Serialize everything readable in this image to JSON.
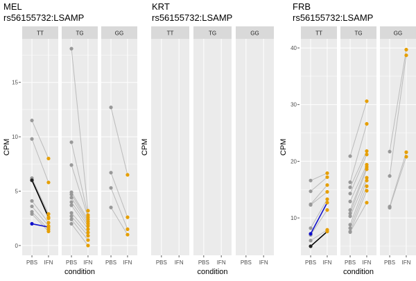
{
  "palette": {
    "pbs": "#999999",
    "ifn": "#E69F00",
    "line": "#BBBBBB",
    "mean_black": "#000000",
    "mean_blue": "#1010CC",
    "panel_bg": "#EBEBEB",
    "strip_bg": "#D9D9D9",
    "grid": "#FFFFFF"
  },
  "chart_data": [
    {
      "type": "line",
      "title": "MEL\nrs56155732:LSAMP",
      "xlabel": "condition",
      "ylabel": "CPM",
      "ylim": [
        -0.9,
        19.0
      ],
      "yticks": [
        0,
        5,
        10,
        15
      ],
      "x_categories": [
        "PBS",
        "IFN"
      ],
      "facets": [
        {
          "label": "TT",
          "pairs": [
            [
              11.5,
              8.0
            ],
            [
              9.8,
              5.8
            ],
            [
              6.2,
              2.9
            ],
            [
              6.1,
              2.9
            ],
            [
              6.0,
              2.5
            ],
            [
              4.1,
              2.1
            ],
            [
              3.6,
              1.8
            ],
            [
              3.1,
              1.5
            ],
            [
              2.9,
              1.3
            ]
          ],
          "means": [
            {
              "from": 6.0,
              "to": 2.6,
              "color": "mean_black"
            },
            {
              "from": 2.0,
              "to": 1.7,
              "color": "mean_blue"
            }
          ]
        },
        {
          "label": "TG",
          "pairs": [
            [
              18.1,
              3.2
            ],
            [
              9.5,
              2.8
            ],
            [
              7.4,
              2.6
            ],
            [
              4.9,
              2.4
            ],
            [
              4.7,
              2.2
            ],
            [
              4.4,
              2.0
            ],
            [
              4.0,
              1.8
            ],
            [
              3.7,
              1.5
            ],
            [
              3.0,
              1.2
            ],
            [
              2.7,
              0.9
            ],
            [
              2.4,
              0.5
            ],
            [
              2.0,
              0.0
            ]
          ],
          "means": []
        },
        {
          "label": "GG",
          "pairs": [
            [
              12.7,
              6.5
            ],
            [
              6.7,
              2.6
            ],
            [
              5.3,
              1.5
            ],
            [
              3.5,
              1.0
            ]
          ],
          "means": []
        }
      ]
    },
    {
      "type": "line",
      "title": "KRT\nrs56155732:LSAMP",
      "xlabel": "condition",
      "ylabel": "CPM",
      "ylim": [
        0,
        1
      ],
      "yticks": [],
      "x_categories": [
        "PBS",
        "IFN"
      ],
      "facets": [
        {
          "label": "TT",
          "pairs": [],
          "means": []
        },
        {
          "label": "TG",
          "pairs": [],
          "means": []
        },
        {
          "label": "GG",
          "pairs": [],
          "means": []
        }
      ]
    },
    {
      "type": "line",
      "title": "FRB\nrs56155732:LSAMP",
      "xlabel": "condition",
      "ylabel": "CPM",
      "ylim": [
        3.4,
        41.6
      ],
      "yticks": [
        10,
        20,
        30,
        40
      ],
      "x_categories": [
        "PBS",
        "IFN"
      ],
      "facets": [
        {
          "label": "TT",
          "pairs": [
            [
              16.6,
              17.9
            ],
            [
              14.7,
              17.2
            ],
            [
              12.4,
              15.8
            ],
            [
              12.3,
              14.6
            ],
            [
              8.2,
              13.3
            ],
            [
              7.0,
              11.4
            ],
            [
              6.0,
              7.9
            ]
          ],
          "means": [
            {
              "from": 5.0,
              "to": 7.6,
              "color": "mean_black"
            },
            {
              "from": 7.2,
              "to": 12.7,
              "color": "mean_blue"
            }
          ]
        },
        {
          "label": "TG",
          "pairs": [
            [
              20.9,
              30.6
            ],
            [
              16.3,
              26.6
            ],
            [
              15.4,
              21.8
            ],
            [
              14.3,
              21.2
            ],
            [
              12.9,
              19.4
            ],
            [
              11.4,
              19.0
            ],
            [
              10.8,
              18.6
            ],
            [
              10.3,
              17.1
            ],
            [
              8.8,
              16.6
            ],
            [
              8.2,
              15.6
            ],
            [
              7.6,
              14.8
            ],
            [
              7.5,
              12.7
            ]
          ],
          "means": []
        },
        {
          "label": "GG",
          "pairs": [
            [
              21.7,
              39.7
            ],
            [
              17.4,
              38.7
            ],
            [
              12.0,
              21.6
            ],
            [
              11.8,
              20.8
            ]
          ],
          "means": []
        }
      ]
    }
  ]
}
